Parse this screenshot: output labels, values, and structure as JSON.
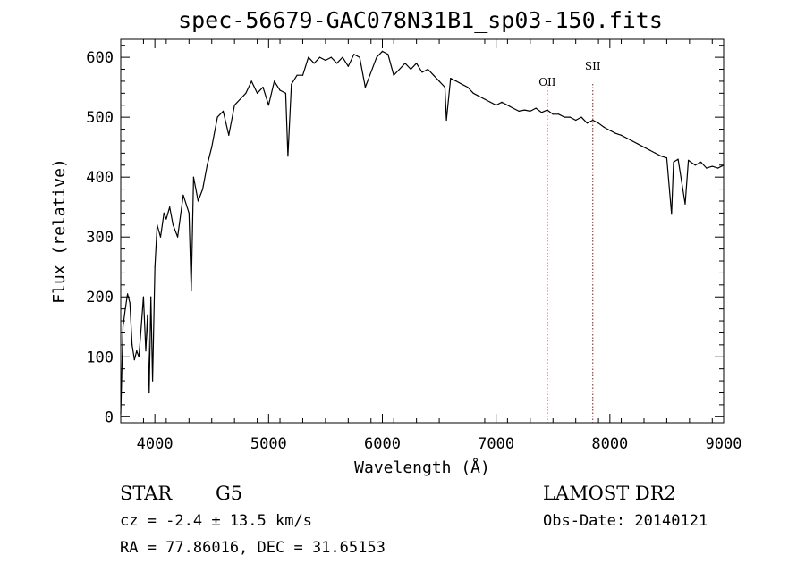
{
  "title": "spec-56679-GAC078N31B1_sp03-150.fits",
  "info": {
    "class_label": "STAR",
    "subclass_label": "G5",
    "survey_label": "LAMOST DR2",
    "cz_text": "cz = -2.4 ± 13.5 km/s",
    "obs_text": "Obs-Date: 20140121",
    "radec_text": "RA =  77.86016, DEC =  31.65153"
  },
  "chart_data": {
    "type": "line",
    "title": "spec-56679-GAC078N31B1_sp03-150.fits",
    "xlabel": "Wavelength (Å)",
    "ylabel": "Flux (relative)",
    "xlim": [
      3700,
      9000
    ],
    "ylim": [
      -10,
      630
    ],
    "xticks": [
      4000,
      5000,
      6000,
      7000,
      8000,
      9000
    ],
    "yticks": [
      0,
      100,
      200,
      300,
      400,
      500,
      600
    ],
    "grid": false,
    "line_color": "#000000",
    "marker_color": "#8b1a1a",
    "x": [
      3700,
      3720,
      3740,
      3760,
      3780,
      3800,
      3820,
      3840,
      3860,
      3880,
      3900,
      3920,
      3935,
      3950,
      3965,
      3980,
      4000,
      4020,
      4050,
      4080,
      4100,
      4130,
      4160,
      4200,
      4250,
      4300,
      4320,
      4340,
      4380,
      4420,
      4460,
      4500,
      4550,
      4600,
      4650,
      4700,
      4750,
      4800,
      4850,
      4900,
      4950,
      5000,
      5050,
      5100,
      5150,
      5170,
      5200,
      5250,
      5300,
      5350,
      5400,
      5450,
      5500,
      5550,
      5600,
      5650,
      5700,
      5750,
      5800,
      5850,
      5890,
      5950,
      6000,
      6050,
      6100,
      6150,
      6200,
      6250,
      6300,
      6350,
      6400,
      6450,
      6500,
      6550,
      6563,
      6600,
      6650,
      6700,
      6750,
      6800,
      6850,
      6900,
      6950,
      7000,
      7050,
      7100,
      7150,
      7200,
      7250,
      7300,
      7350,
      7400,
      7450,
      7500,
      7550,
      7600,
      7650,
      7700,
      7750,
      7800,
      7850,
      7900,
      7950,
      8000,
      8050,
      8100,
      8150,
      8200,
      8250,
      8300,
      8350,
      8400,
      8450,
      8500,
      8542,
      8560,
      8600,
      8662,
      8690,
      8750,
      8800,
      8850,
      8900,
      8950,
      9000
    ],
    "y": [
      5,
      150,
      180,
      205,
      190,
      120,
      95,
      110,
      100,
      150,
      200,
      110,
      170,
      40,
      200,
      60,
      250,
      320,
      300,
      340,
      330,
      350,
      320,
      300,
      370,
      340,
      210,
      400,
      360,
      380,
      420,
      450,
      500,
      510,
      470,
      520,
      530,
      540,
      560,
      540,
      550,
      520,
      560,
      545,
      540,
      435,
      555,
      570,
      570,
      600,
      590,
      600,
      595,
      600,
      590,
      600,
      585,
      605,
      600,
      550,
      570,
      600,
      610,
      605,
      570,
      580,
      590,
      580,
      590,
      575,
      580,
      570,
      560,
      550,
      495,
      565,
      560,
      555,
      550,
      540,
      535,
      530,
      525,
      520,
      525,
      520,
      515,
      510,
      512,
      510,
      515,
      508,
      512,
      505,
      505,
      500,
      500,
      495,
      500,
      490,
      495,
      490,
      483,
      478,
      473,
      470,
      465,
      460,
      455,
      450,
      445,
      440,
      435,
      432,
      338,
      425,
      430,
      355,
      428,
      420,
      425,
      415,
      418,
      415,
      420
    ]
  },
  "markers": [
    {
      "label": "OII",
      "wavelength": 7450
    },
    {
      "label": "SII",
      "wavelength": 7850
    }
  ]
}
